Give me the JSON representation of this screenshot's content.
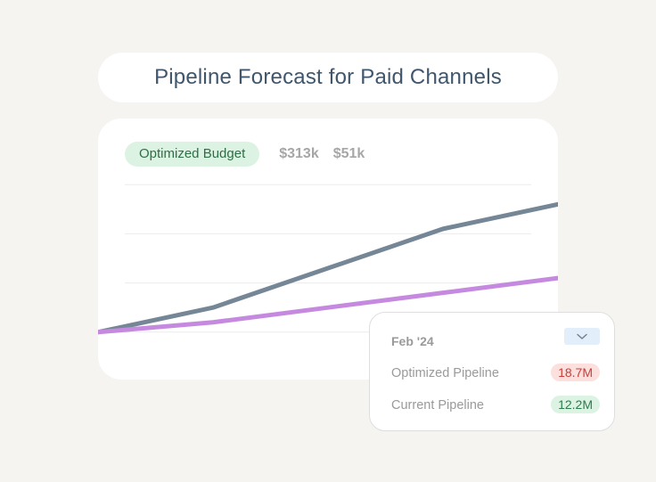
{
  "title": "Pipeline Forecast for Paid Channels",
  "tabs": {
    "active_label": "Optimized Budget",
    "values": [
      "$313k",
      "$51k"
    ]
  },
  "chart_data": {
    "type": "line",
    "title": "",
    "xlabel": "",
    "ylabel": "",
    "x": [
      0,
      1,
      2,
      3,
      4
    ],
    "ylim": [
      0,
      5
    ],
    "grid": true,
    "series": [
      {
        "color": "#758696",
        "values": [
          1.0,
          1.5,
          2.3,
          3.1,
          3.6
        ]
      },
      {
        "color": "#c58ae0",
        "values": [
          1.0,
          1.2,
          1.5,
          1.8,
          2.1
        ]
      }
    ]
  },
  "tooltip": {
    "period": "Feb '24",
    "rows": [
      {
        "label": "Optimized Pipeline",
        "value": "18.7M",
        "tone": "red"
      },
      {
        "label": "Current Pipeline",
        "value": "12.2M",
        "tone": "green"
      }
    ]
  },
  "colors": {
    "background": "#f5f4f0",
    "title": "#3f566c",
    "optimized_line": "#758696",
    "current_line": "#c58ae0"
  }
}
